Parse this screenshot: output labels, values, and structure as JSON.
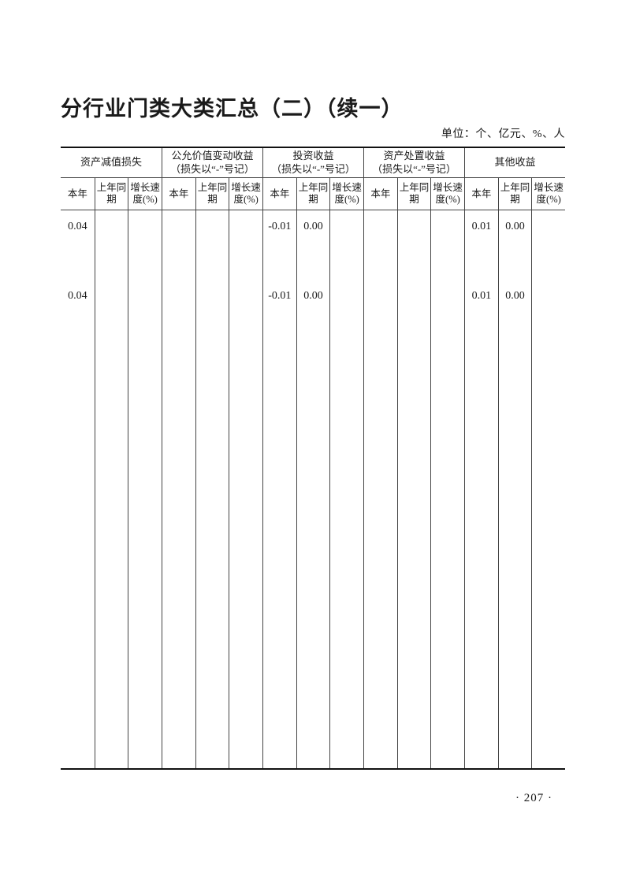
{
  "page": {
    "title": "分行业门类大类汇总（二）（续一）",
    "unit_note": "单位：个、亿元、%、人",
    "page_number": "· 207 ·"
  },
  "table": {
    "groups": [
      {
        "label": "资产减值损失"
      },
      {
        "label": "公允价值变动收益\n（损失以“-”号记）"
      },
      {
        "label": "投资收益\n（损失以“-”号记）"
      },
      {
        "label": "资产处置收益\n（损失以“-”号记）"
      },
      {
        "label": "其他收益"
      }
    ],
    "subcolumns": [
      "本年",
      "上年同\n期",
      "增长速\n度(%)"
    ],
    "rows": [
      {
        "cells": [
          "0.04",
          "",
          "",
          "",
          "",
          "",
          "-0.01",
          "0.00",
          "",
          "",
          "",
          "",
          "0.01",
          "0.00",
          ""
        ]
      },
      {
        "cells": [
          "0.04",
          "",
          "",
          "",
          "",
          "",
          "-0.01",
          "0.00",
          "",
          "",
          "",
          "",
          "0.01",
          "0.00",
          ""
        ]
      }
    ]
  }
}
